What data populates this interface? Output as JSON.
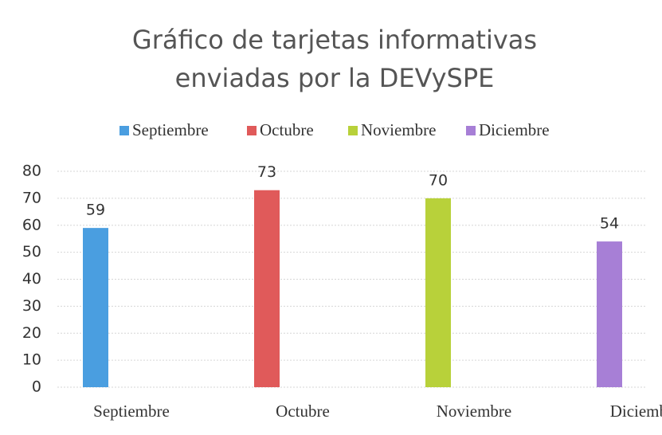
{
  "chart_data": {
    "type": "bar",
    "title": [
      "Gráfico de tarjetas informativas",
      "enviadas por la DEVySPE"
    ],
    "categories": [
      "Septiembre",
      "Octubre",
      "Noviembre",
      "Diciembre"
    ],
    "values": [
      59,
      73,
      70,
      54
    ],
    "colors": [
      "#4a9ee0",
      "#e05a5a",
      "#b8d13a",
      "#a77fd6"
    ],
    "legend": "top",
    "ylim": [
      0,
      80
    ],
    "yticks": [
      0,
      10,
      20,
      30,
      40,
      50,
      60,
      70,
      80
    ],
    "grid": true
  }
}
